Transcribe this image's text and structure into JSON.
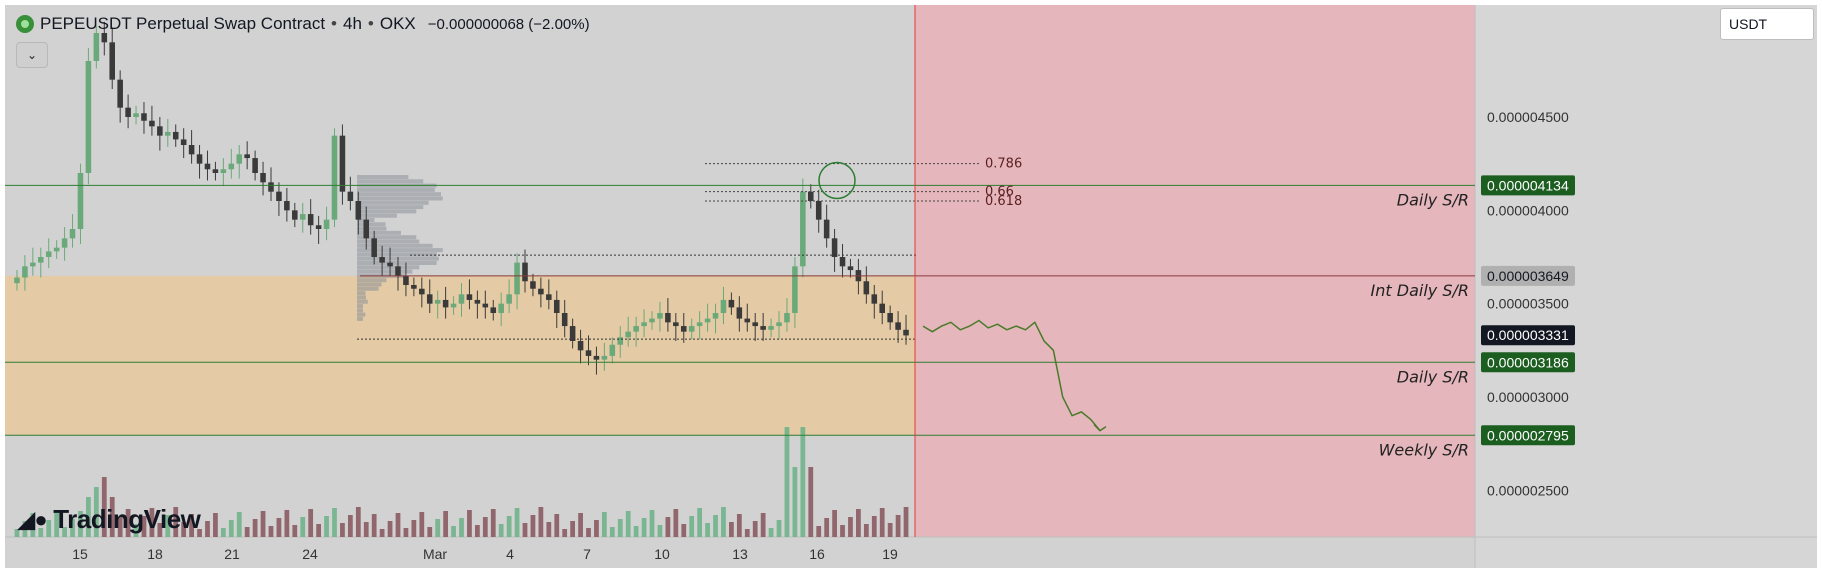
{
  "header": {
    "symbol": "PEPEUSDT Perpetual Swap Contract",
    "sep1": "•",
    "interval": "4h",
    "sep2": "•",
    "exchange": "OKX",
    "change": "−0.000000068 (−2.00%)"
  },
  "currency": "USDT",
  "branding": {
    "logo_text": "TradingView",
    "logo_mark": "17"
  },
  "colors": {
    "background": "#d2d2d2",
    "up_candle": "#6aaa7a",
    "down_candle": "#3a3a3a",
    "volume_up": "#6fb28a",
    "volume_down": "#8a5a62",
    "support_line": "#2e7d32",
    "forecast_zone": "#f2a5ad",
    "demand_zone": "#e8c89a",
    "cursor_line": "#e53935"
  },
  "chart_data": {
    "type": "candlestick",
    "x_tick_labels": [
      "15",
      "18",
      "21",
      "24",
      "Mar",
      "4",
      "7",
      "10",
      "13",
      "16",
      "19"
    ],
    "y_tick_labels": [
      "0.000004500",
      "0.000004000",
      "0.000003500",
      "0.000003000",
      "0.000002500"
    ],
    "y_range": [
      2.25e-06,
      5.1e-06
    ],
    "price_labels": [
      {
        "value": "0.000004134",
        "style": "green"
      },
      {
        "value": "0.000003649",
        "style": "gray"
      },
      {
        "value": "0.000003331",
        "style": "dark"
      },
      {
        "value": "0.000003186",
        "style": "green"
      },
      {
        "value": "0.000002795",
        "style": "green"
      }
    ],
    "levels": [
      {
        "label": "Daily S/R",
        "price": 4.134e-06
      },
      {
        "label": "Int Daily S/R",
        "price": 3.649e-06
      },
      {
        "label": "Daily S/R",
        "price": 3.186e-06
      },
      {
        "label": "Weekly S/R",
        "price": 2.795e-06
      }
    ],
    "fib_levels": [
      {
        "label": "0.786",
        "price": 4.25e-06
      },
      {
        "label": "0.66",
        "price": 4.1e-06
      },
      {
        "label": "0.618",
        "price": 4.05e-06
      }
    ],
    "close_series": [
      3.64,
      3.7,
      3.72,
      3.75,
      3.78,
      3.8,
      3.85,
      3.9,
      4.2,
      4.8,
      4.95,
      4.9,
      4.7,
      4.55,
      4.5,
      4.52,
      4.48,
      4.45,
      4.4,
      4.42,
      4.38,
      4.35,
      4.3,
      4.25,
      4.22,
      4.2,
      4.22,
      4.25,
      4.3,
      4.28,
      4.2,
      4.15,
      4.1,
      4.05,
      4.0,
      3.95,
      3.98,
      3.92,
      3.9,
      3.95,
      4.4,
      4.1,
      4.05,
      3.95,
      3.85,
      3.75,
      3.72,
      3.7,
      3.65,
      3.6,
      3.58,
      3.55,
      3.5,
      3.52,
      3.48,
      3.5,
      3.55,
      3.52,
      3.5,
      3.48,
      3.45,
      3.5,
      3.55,
      3.72,
      3.62,
      3.58,
      3.55,
      3.52,
      3.45,
      3.38,
      3.3,
      3.25,
      3.22,
      3.2,
      3.22,
      3.28,
      3.32,
      3.35,
      3.38,
      3.4,
      3.42,
      3.45,
      3.4,
      3.38,
      3.35,
      3.38,
      3.4,
      3.42,
      3.45,
      3.52,
      3.48,
      3.42,
      3.4,
      3.38,
      3.36,
      3.38,
      3.4,
      3.45,
      3.7,
      4.1,
      4.05,
      3.95,
      3.85,
      3.75,
      3.7,
      3.68,
      3.62,
      3.55,
      3.5,
      3.45,
      3.4,
      3.36,
      3.33
    ],
    "forecast_path": [
      3.38,
      3.35,
      3.38,
      3.4,
      3.36,
      3.38,
      3.41,
      3.37,
      3.39,
      3.36,
      3.38,
      3.36,
      3.4,
      3.3,
      3.25,
      3.0,
      2.9,
      2.92,
      2.88,
      2.82
    ]
  }
}
